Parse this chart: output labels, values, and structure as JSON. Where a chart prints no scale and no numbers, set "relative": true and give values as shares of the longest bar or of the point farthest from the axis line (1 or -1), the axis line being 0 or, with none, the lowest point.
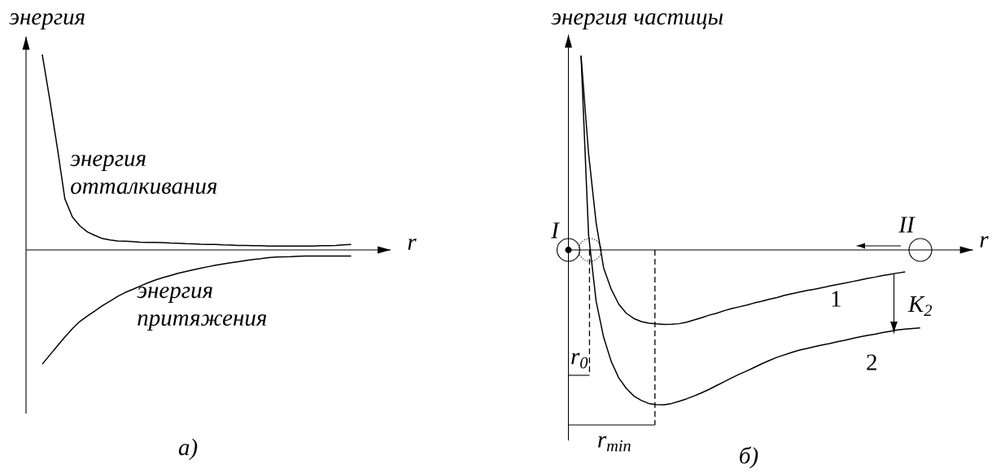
{
  "chart_data": [
    {
      "type": "line",
      "relative": true,
      "ylabel": "энергия",
      "xlabel": "r",
      "categories": [
        null,
        null,
        null,
        null,
        null,
        null,
        null,
        null,
        null,
        null,
        null,
        null,
        null,
        null,
        null,
        null,
        null,
        null,
        null,
        null,
        null,
        null,
        null,
        null,
        null,
        null,
        null,
        null,
        null,
        null,
        null,
        null,
        null,
        null,
        null,
        null,
        null,
        null,
        null,
        null,
        null,
        null
      ],
      "series": [
        {
          "name": "энергия отталкивания",
          "color": "#000000",
          "values": [
            1.0,
            0.769,
            0.523,
            0.262,
            0.169,
            0.123,
            0.092,
            0.074,
            0.058,
            0.051,
            0.046,
            0.045,
            0.043,
            0.04,
            0.038,
            0.038,
            0.037,
            0.035,
            0.034,
            0.032,
            0.031,
            0.029,
            0.028,
            0.028,
            0.026,
            0.025,
            0.023,
            0.023,
            0.022,
            0.022,
            0.02,
            0.02,
            0.02,
            0.02,
            0.02,
            0.02,
            0.02,
            0.022,
            0.022,
            0.023,
            0.026,
            0.028
          ]
        },
        {
          "name": "энергия притяжения",
          "color": "#000000",
          "values": [
            -0.585,
            -0.538,
            -0.492,
            -0.446,
            -0.403,
            -0.366,
            -0.338,
            -0.312,
            -0.285,
            -0.262,
            -0.238,
            -0.218,
            -0.202,
            -0.185,
            -0.169,
            -0.154,
            -0.142,
            -0.131,
            -0.12,
            -0.111,
            -0.102,
            -0.094,
            -0.086,
            -0.078,
            -0.072,
            -0.066,
            -0.06,
            -0.054,
            -0.049,
            -0.045,
            -0.04,
            -0.037,
            -0.035,
            -0.034,
            -0.032,
            -0.031,
            -0.031,
            -0.031,
            -0.031,
            -0.031,
            -0.031,
            -0.031
          ]
        }
      ],
      "annotations": [
        "а)"
      ]
    },
    {
      "type": "line",
      "relative": true,
      "ylabel": "энергия частицы",
      "xlabel": "r",
      "categories": [
        null,
        null,
        null,
        null,
        null,
        null,
        null,
        null,
        null,
        null,
        null,
        null,
        null,
        null,
        null,
        null,
        null,
        null,
        null,
        null,
        null,
        null,
        null,
        null,
        null,
        null,
        null,
        null,
        null,
        null,
        null,
        null,
        null,
        null,
        null,
        null,
        null,
        null,
        null,
        null,
        null,
        null,
        null,
        null,
        null,
        null
      ],
      "series": [
        {
          "name": "1",
          "color": "#000000",
          "values": [
            1.0,
            0.496,
            0.14,
            -0.093,
            -0.202,
            -0.279,
            -0.326,
            -0.353,
            -0.369,
            -0.377,
            -0.381,
            -0.384,
            -0.383,
            -0.38,
            -0.372,
            -0.361,
            -0.349,
            -0.336,
            -0.326,
            -0.313,
            -0.302,
            -0.293,
            -0.284,
            -0.273,
            -0.264,
            -0.254,
            -0.245,
            -0.234,
            -0.225,
            -0.217,
            -0.209,
            -0.202,
            -0.194,
            -0.186,
            -0.178,
            -0.171,
            -0.163,
            -0.155,
            -0.147,
            -0.14,
            -0.132,
            -0.126,
            -0.119,
            -0.113,
            null,
            null
          ]
        },
        {
          "name": "2",
          "color": "#000000",
          "values": [
            1.0,
            0.078,
            -0.264,
            -0.45,
            -0.574,
            -0.659,
            -0.713,
            -0.752,
            -0.775,
            -0.791,
            -0.797,
            -0.798,
            -0.791,
            -0.78,
            -0.767,
            -0.752,
            -0.736,
            -0.718,
            -0.698,
            -0.679,
            -0.659,
            -0.64,
            -0.623,
            -0.605,
            -0.586,
            -0.569,
            -0.553,
            -0.54,
            -0.527,
            -0.516,
            -0.507,
            -0.498,
            -0.49,
            -0.482,
            -0.473,
            -0.465,
            -0.456,
            -0.448,
            -0.44,
            -0.434,
            -0.426,
            -0.419,
            -0.412,
            -0.408,
            -0.405,
            -0.402
          ]
        }
      ],
      "annotations": [
        "I",
        "II",
        "K$_{2}$",
        "r$_{0}$",
        "r$_{min}$",
        "б)"
      ]
    }
  ]
}
